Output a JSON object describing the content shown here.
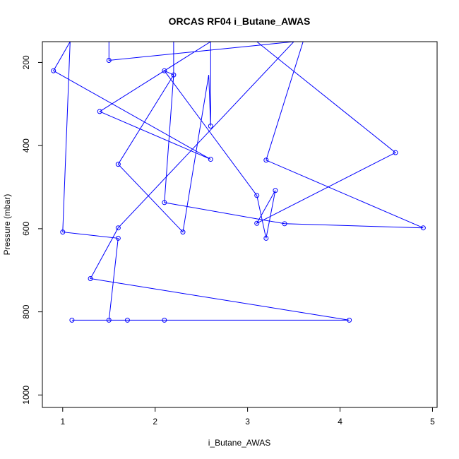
{
  "chart_data": {
    "type": "line",
    "title": "ORCAS RF04 i_Butane_AWAS",
    "xlabel": "i_Butane_AWAS",
    "ylabel": "Pressure (mbar)",
    "xlim": [
      0.78,
      5.05
    ],
    "ylim": [
      1030,
      150
    ],
    "y_reversed": true,
    "x_ticks": [
      1,
      2,
      3,
      4,
      5
    ],
    "y_ticks": [
      200,
      400,
      600,
      800,
      1000
    ],
    "grid": false,
    "legend": "none",
    "series_color": "#0000ff",
    "marker": "open-circle",
    "points": [
      {
        "x": 1.1,
        "y": 820
      },
      {
        "x": 1.5,
        "y": 820
      },
      {
        "x": 1.6,
        "y": 623
      },
      {
        "x": 1.0,
        "y": 608
      },
      {
        "x": 1.08,
        "y": 150
      },
      {
        "x": 0.9,
        "y": 220
      },
      {
        "x": 2.6,
        "y": 433
      },
      {
        "x": 1.4,
        "y": 318
      },
      {
        "x": 2.6,
        "y": 150
      },
      {
        "x": 2.6,
        "y": 353
      },
      {
        "x": 2.58,
        "y": 230
      },
      {
        "x": 2.3,
        "y": 608
      },
      {
        "x": 1.6,
        "y": 445
      },
      {
        "x": 2.2,
        "y": 230
      },
      {
        "x": 2.1,
        "y": 220
      },
      {
        "x": 3.1,
        "y": 520
      },
      {
        "x": 3.2,
        "y": 623
      },
      {
        "x": 3.3,
        "y": 508
      },
      {
        "x": 3.1,
        "y": 587
      },
      {
        "x": 4.6,
        "y": 417
      },
      {
        "x": 3.1,
        "y": 150
      },
      {
        "x": 1.68,
        "y": 150
      },
      {
        "x": 3.6,
        "y": 150
      },
      {
        "x": 3.2,
        "y": 435
      },
      {
        "x": 4.9,
        "y": 598
      },
      {
        "x": 3.4,
        "y": 588
      },
      {
        "x": 2.1,
        "y": 537
      },
      {
        "x": 2.2,
        "y": 230
      },
      {
        "x": 2.2,
        "y": 150
      },
      {
        "x": 1.5,
        "y": 150
      },
      {
        "x": 1.5,
        "y": 195
      },
      {
        "x": 3.5,
        "y": 150
      },
      {
        "x": 1.6,
        "y": 598
      },
      {
        "x": 1.3,
        "y": 720
      },
      {
        "x": 4.1,
        "y": 820
      },
      {
        "x": 1.1,
        "y": 820
      },
      {
        "x": 1.7,
        "y": 820
      },
      {
        "x": 2.1,
        "y": 820
      }
    ],
    "markers_shown": [
      {
        "x": 1.1,
        "y": 820
      },
      {
        "x": 1.5,
        "y": 820
      },
      {
        "x": 1.6,
        "y": 623
      },
      {
        "x": 1.0,
        "y": 608
      },
      {
        "x": 0.9,
        "y": 220
      },
      {
        "x": 2.6,
        "y": 433
      },
      {
        "x": 1.4,
        "y": 318
      },
      {
        "x": 2.6,
        "y": 353
      },
      {
        "x": 2.3,
        "y": 608
      },
      {
        "x": 1.6,
        "y": 445
      },
      {
        "x": 2.2,
        "y": 230
      },
      {
        "x": 2.1,
        "y": 220
      },
      {
        "x": 3.1,
        "y": 520
      },
      {
        "x": 3.2,
        "y": 623
      },
      {
        "x": 3.3,
        "y": 508
      },
      {
        "x": 3.1,
        "y": 587
      },
      {
        "x": 4.6,
        "y": 417
      },
      {
        "x": 3.2,
        "y": 435
      },
      {
        "x": 4.9,
        "y": 598
      },
      {
        "x": 3.4,
        "y": 588
      },
      {
        "x": 2.1,
        "y": 537
      },
      {
        "x": 1.5,
        "y": 195
      },
      {
        "x": 1.6,
        "y": 598
      },
      {
        "x": 1.3,
        "y": 720
      },
      {
        "x": 4.1,
        "y": 820
      },
      {
        "x": 1.7,
        "y": 820
      },
      {
        "x": 2.1,
        "y": 820
      }
    ]
  }
}
